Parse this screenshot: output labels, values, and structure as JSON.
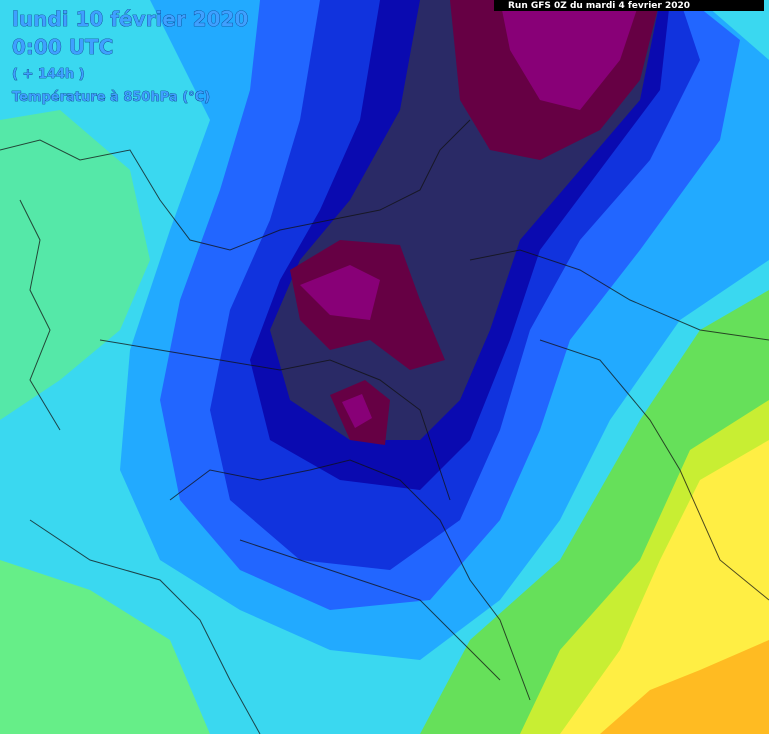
{
  "header": {
    "date": "lundi 10 février 2020",
    "time": "0:00 UTC",
    "lead": "( + 144h )",
    "field": "Température à 850hPa (°C)",
    "run": "Run GFS 0Z  du mardi 4 fevrier 2020"
  }
}
